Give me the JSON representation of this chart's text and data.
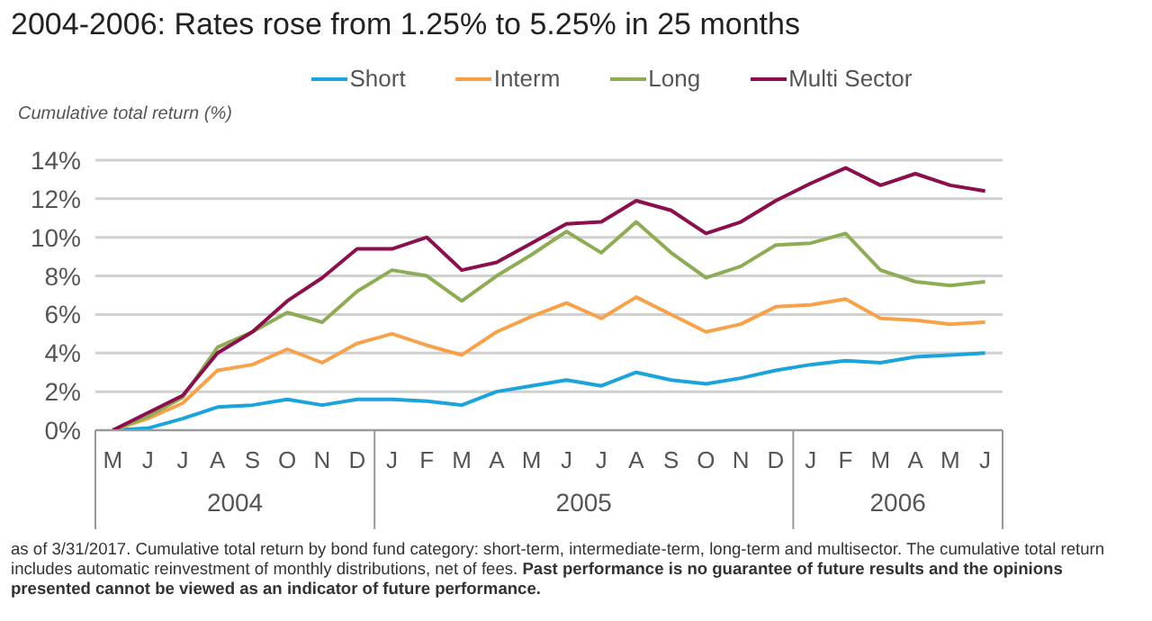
{
  "chart_data": {
    "type": "line",
    "title": "2004-2006: Rates rose from 1.25% to 5.25% in 25 months",
    "ylabel": "Cumulative total return (%)",
    "categories": [
      "M",
      "J",
      "J",
      "A",
      "S",
      "O",
      "N",
      "D",
      "J",
      "F",
      "M",
      "A",
      "M",
      "J",
      "J",
      "A",
      "S",
      "O",
      "N",
      "D",
      "J",
      "F",
      "M",
      "A",
      "M",
      "J"
    ],
    "series": [
      {
        "name": "Short",
        "color": "#1ba3dc",
        "values": [
          0,
          0.1,
          0.6,
          1.2,
          1.3,
          1.6,
          1.3,
          1.6,
          1.6,
          1.5,
          1.3,
          2.0,
          2.3,
          2.6,
          2.3,
          3.0,
          2.6,
          2.4,
          2.7,
          3.1,
          3.4,
          3.6,
          3.5,
          3.8,
          3.9,
          4.0
        ]
      },
      {
        "name": "Interm",
        "color": "#f7a24b",
        "values": [
          0,
          0.6,
          1.4,
          3.1,
          3.4,
          4.2,
          3.5,
          4.5,
          5.0,
          4.4,
          3.9,
          5.1,
          5.9,
          6.6,
          5.8,
          6.9,
          6.0,
          5.1,
          5.5,
          6.4,
          6.5,
          6.8,
          5.8,
          5.7,
          5.5,
          5.6
        ]
      },
      {
        "name": "Long",
        "color": "#8dac55",
        "values": [
          0,
          0.7,
          1.7,
          4.3,
          5.1,
          6.1,
          5.6,
          7.2,
          8.3,
          8.0,
          6.7,
          8.0,
          9.1,
          10.3,
          9.2,
          10.8,
          9.2,
          7.9,
          8.5,
          9.6,
          9.7,
          10.2,
          8.3,
          7.7,
          7.5,
          7.7
        ]
      },
      {
        "name": "Multi Sector",
        "color": "#8b0f4d",
        "values": [
          0,
          0.9,
          1.8,
          4.0,
          5.1,
          6.7,
          7.9,
          9.4,
          9.4,
          10.0,
          8.3,
          8.7,
          9.7,
          10.7,
          10.8,
          11.9,
          11.4,
          10.2,
          10.8,
          11.9,
          12.8,
          13.6,
          12.7,
          13.3,
          12.7,
          12.4
        ]
      }
    ],
    "ylim": [
      0,
      14
    ],
    "yticks": [
      {
        "value": 0,
        "label": "0%"
      },
      {
        "value": 2,
        "label": "2%"
      },
      {
        "value": 4,
        "label": "4%"
      },
      {
        "value": 6,
        "label": "6%"
      },
      {
        "value": 8,
        "label": "8%"
      },
      {
        "value": 10,
        "label": "10%"
      },
      {
        "value": 12,
        "label": "12%"
      },
      {
        "value": 14,
        "label": "14%"
      }
    ],
    "grid": "y",
    "legend": "top",
    "marker": "none",
    "line_style": "solid",
    "annotations": [
      "2004",
      "2005",
      "2006",
      "as of 3/31/2017. Cumulative total return by bond fund category: short-term, intermediate-term, long-term and multisector. The cumulative total return includes automatic reinvestment of monthly distributions, net of fees.",
      "Past performance is no guarantee of future results and the opinions presented cannot be viewed as an indicator of future performance."
    ]
  }
}
